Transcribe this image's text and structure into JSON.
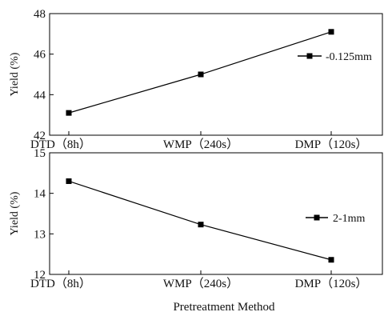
{
  "chart_data": [
    {
      "type": "line",
      "categories": [
        "DTD（8h）",
        "WMP（240s）",
        "DMP（120s）"
      ],
      "series": [
        {
          "name": "-0.125mm",
          "values": [
            43.1,
            45.0,
            47.1
          ],
          "color": "#000000",
          "marker": "square"
        }
      ],
      "ylabel": "Yield (%)",
      "xlabel": "",
      "ylim": [
        42,
        48
      ],
      "yticks": [
        "42",
        "44",
        "46",
        "48"
      ],
      "grid": false,
      "legend": "right"
    },
    {
      "type": "line",
      "categories": [
        "DTD（8h）",
        "WMP（240s）",
        "DMP（120s）"
      ],
      "series": [
        {
          "name": "2-1mm",
          "values": [
            14.3,
            13.23,
            12.36
          ],
          "color": "#000000",
          "marker": "square"
        }
      ],
      "ylabel": "Yield (%)",
      "xlabel": "Pretreatment Method",
      "ylim": [
        12,
        15
      ],
      "yticks": [
        "12",
        "13",
        "14",
        "15"
      ],
      "grid": false,
      "legend": "right"
    }
  ]
}
